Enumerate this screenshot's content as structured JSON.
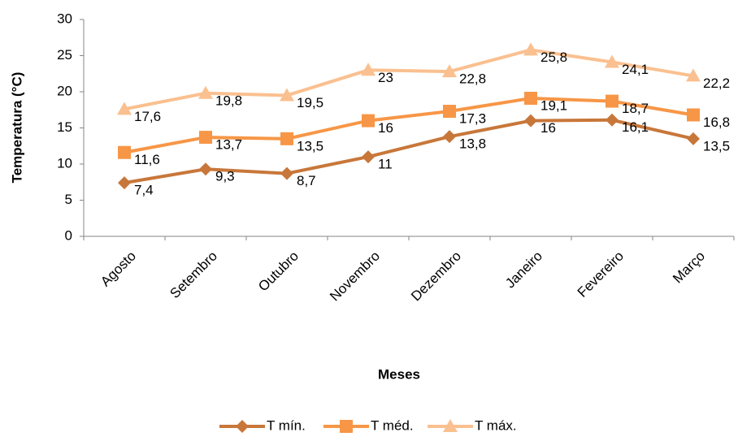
{
  "chart_data": {
    "type": "line",
    "x_label": "Meses",
    "y_label": "Temperatura (°C)",
    "categories": [
      "Agosto",
      "Setembro",
      "Outubro",
      "Novembro",
      "Dezembro",
      "Janeiro",
      "Fevereiro",
      "Março"
    ],
    "series": [
      {
        "name": "T mín.",
        "color": "#c8773a",
        "marker": "diamond",
        "values": [
          7.4,
          9.3,
          8.7,
          11,
          13.8,
          16,
          16.1,
          13.5
        ],
        "value_labels": [
          "7,4",
          "9,3",
          "8,7",
          "11",
          "13,8",
          "16",
          "16,1",
          "13,5"
        ]
      },
      {
        "name": "T méd.",
        "color": "#f79646",
        "marker": "square",
        "values": [
          11.6,
          13.7,
          13.5,
          16,
          17.3,
          19.1,
          18.7,
          16.8
        ],
        "value_labels": [
          "11,6",
          "13,7",
          "13,5",
          "16",
          "17,3",
          "19,1",
          "18,7",
          "16,8"
        ]
      },
      {
        "name": "T máx.",
        "color": "#fac090",
        "marker": "triangle",
        "values": [
          17.6,
          19.8,
          19.5,
          23,
          22.8,
          25.8,
          24.1,
          22.2
        ],
        "value_labels": [
          "17,6",
          "19,8",
          "19,5",
          "23",
          "22,8",
          "25,8",
          "24,1",
          "22,2"
        ]
      }
    ],
    "ylim": [
      0,
      30
    ],
    "yticks": [
      0,
      5,
      10,
      15,
      20,
      25,
      30
    ],
    "grid": false,
    "legend": "bottom"
  }
}
